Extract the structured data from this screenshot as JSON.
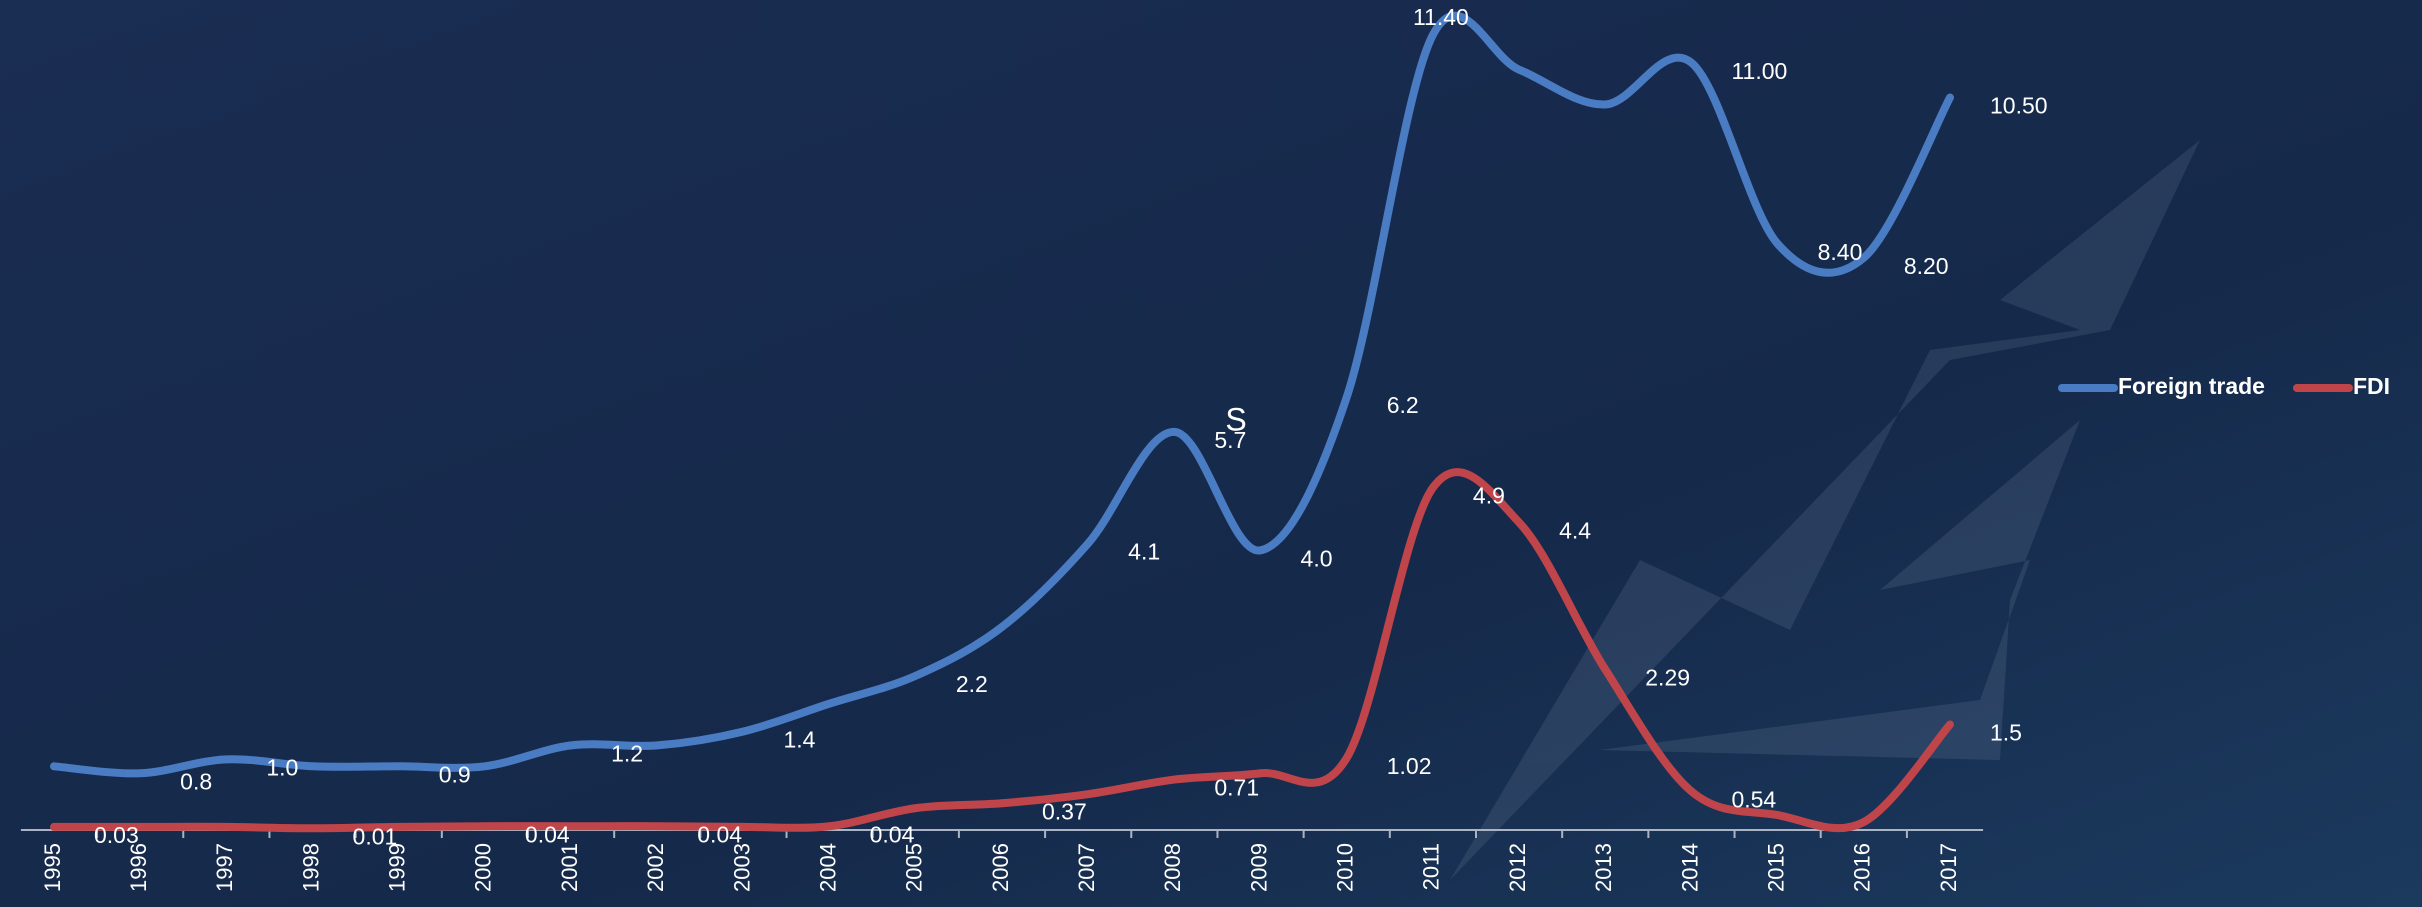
{
  "chart_data": {
    "type": "line",
    "annotation": "S",
    "categories": [
      "1995",
      "1996",
      "1997",
      "1998",
      "1999",
      "2000",
      "2001",
      "2002",
      "2003",
      "2004",
      "2005",
      "2006",
      "2007",
      "2008",
      "2009",
      "2010",
      "2011",
      "2012",
      "2013",
      "2014",
      "2015",
      "2016",
      "2017"
    ],
    "series": [
      {
        "name": "Foreign trade",
        "color": "#4a7cc4",
        "values": [
          0.9,
          0.8,
          1.0,
          0.9,
          0.9,
          0.9,
          1.2,
          1.2,
          1.4,
          1.8,
          2.2,
          2.9,
          4.1,
          5.7,
          4.0,
          6.2,
          11.4,
          10.9,
          10.4,
          11.0,
          8.4,
          8.2,
          10.5
        ],
        "value_labels": [
          null,
          "0.8",
          "1.0",
          null,
          "0.9",
          null,
          "1.2",
          null,
          "1.4",
          null,
          "2.2",
          null,
          "4.1",
          "5.7",
          "4.0",
          "6.2",
          "11.40",
          null,
          null,
          "11.00",
          "8.40",
          "8.20",
          "10.50"
        ]
      },
      {
        "name": "FDI",
        "color": "#c0454a",
        "values": [
          0.03,
          0.03,
          0.03,
          0.01,
          0.03,
          0.04,
          0.04,
          0.04,
          0.03,
          0.04,
          0.3,
          0.37,
          0.5,
          0.71,
          0.8,
          1.02,
          4.9,
          4.4,
          2.29,
          0.54,
          0.2,
          0.1,
          1.5
        ],
        "value_labels": [
          "0.03",
          null,
          null,
          "0.01",
          null,
          "0.04",
          null,
          "0.04",
          null,
          "0.04",
          null,
          "0.37",
          null,
          "0.71",
          null,
          "1.02",
          "4.9",
          "4.4",
          "2.29",
          "0.54",
          null,
          null,
          "1.5"
        ]
      }
    ],
    "ylim": [
      0,
      11.9
    ],
    "legend": "right"
  }
}
